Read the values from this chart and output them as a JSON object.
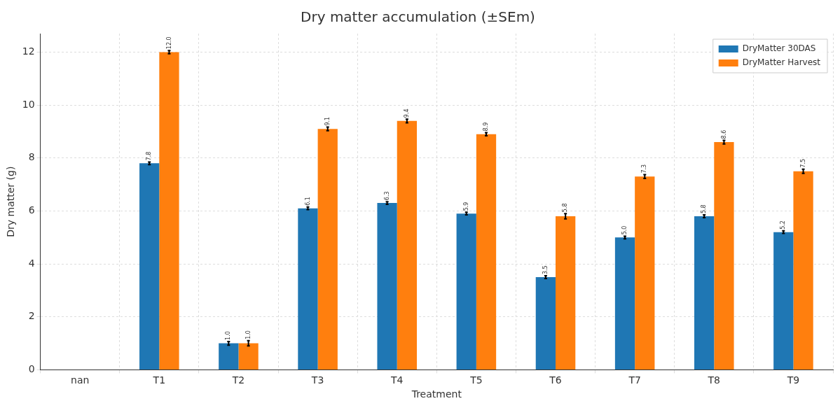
{
  "chart_data": {
    "type": "bar",
    "title": "Dry matter accumulation (±SEm)",
    "xlabel": "Treatment",
    "ylabel": "Dry matter (g)",
    "categories": [
      "nan",
      "T1",
      "T2",
      "T3",
      "T4",
      "T5",
      "T6",
      "T7",
      "T8",
      "T9"
    ],
    "series": [
      {
        "name": "DryMatter 30DAS",
        "color": "#1f77b4",
        "values": [
          null,
          7.8,
          1.0,
          6.1,
          6.3,
          5.9,
          3.5,
          5.0,
          5.8,
          5.2
        ],
        "errors": [
          null,
          0.05,
          0.07,
          0.05,
          0.05,
          0.05,
          0.05,
          0.05,
          0.05,
          0.05
        ],
        "value_labels": [
          null,
          "7.8",
          "1.0",
          "6.1",
          "6.3",
          "5.9",
          "3.5",
          "5.0",
          "5.8",
          "5.2"
        ]
      },
      {
        "name": "DryMatter Harvest",
        "color": "#ff7f0e",
        "values": [
          null,
          12.0,
          1.0,
          9.1,
          9.4,
          8.9,
          5.8,
          7.3,
          8.6,
          7.5
        ],
        "errors": [
          null,
          0.06,
          0.1,
          0.07,
          0.07,
          0.06,
          0.1,
          0.07,
          0.07,
          0.08
        ],
        "value_labels": [
          null,
          "12.0",
          "1.0",
          "9.1",
          "9.4",
          "8.9",
          "5.8",
          "7.3",
          "8.6",
          "7.5"
        ]
      }
    ],
    "ylim": [
      0,
      12.7
    ],
    "yticks": [
      0,
      2,
      4,
      6,
      8,
      10,
      12
    ],
    "grid": true,
    "legend": "top right"
  }
}
